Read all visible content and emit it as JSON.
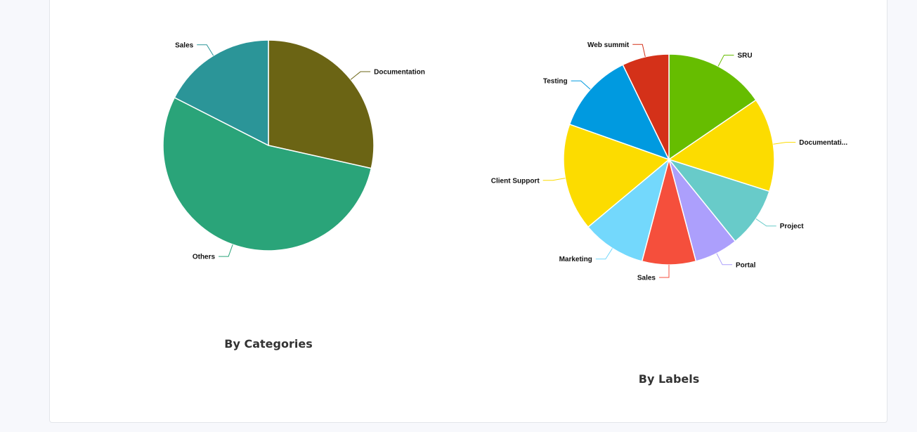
{
  "charts": [
    {
      "title": "By Categories",
      "chart_data": {
        "type": "pie",
        "slices": [
          {
            "label": "Documentation",
            "value": 28.5,
            "color": "#6b6414"
          },
          {
            "label": "Others",
            "value": 54.0,
            "color": "#2aa479"
          },
          {
            "label": "Sales",
            "value": 17.5,
            "color": "#2b9598"
          }
        ]
      }
    },
    {
      "title": "By Labels",
      "chart_data": {
        "type": "pie",
        "slices": [
          {
            "label": "SRU",
            "value": 15,
            "color": "#66bd00"
          },
          {
            "label": "Documentati...",
            "value": 14,
            "color": "#fcdc00"
          },
          {
            "label": "Project",
            "value": 9,
            "color": "#68cbc9"
          },
          {
            "label": "Portal",
            "value": 6.5,
            "color": "#ac9ffc"
          },
          {
            "label": "Sales",
            "value": 8,
            "color": "#f54f3c"
          },
          {
            "label": "Marketing",
            "value": 9.5,
            "color": "#73d8fc"
          },
          {
            "label": "Client Support",
            "value": 16,
            "color": "#fcdc00"
          },
          {
            "label": "Testing",
            "value": 12,
            "color": "#009ae0"
          },
          {
            "label": "Web summit",
            "value": 7,
            "color": "#d43119"
          }
        ]
      }
    }
  ]
}
